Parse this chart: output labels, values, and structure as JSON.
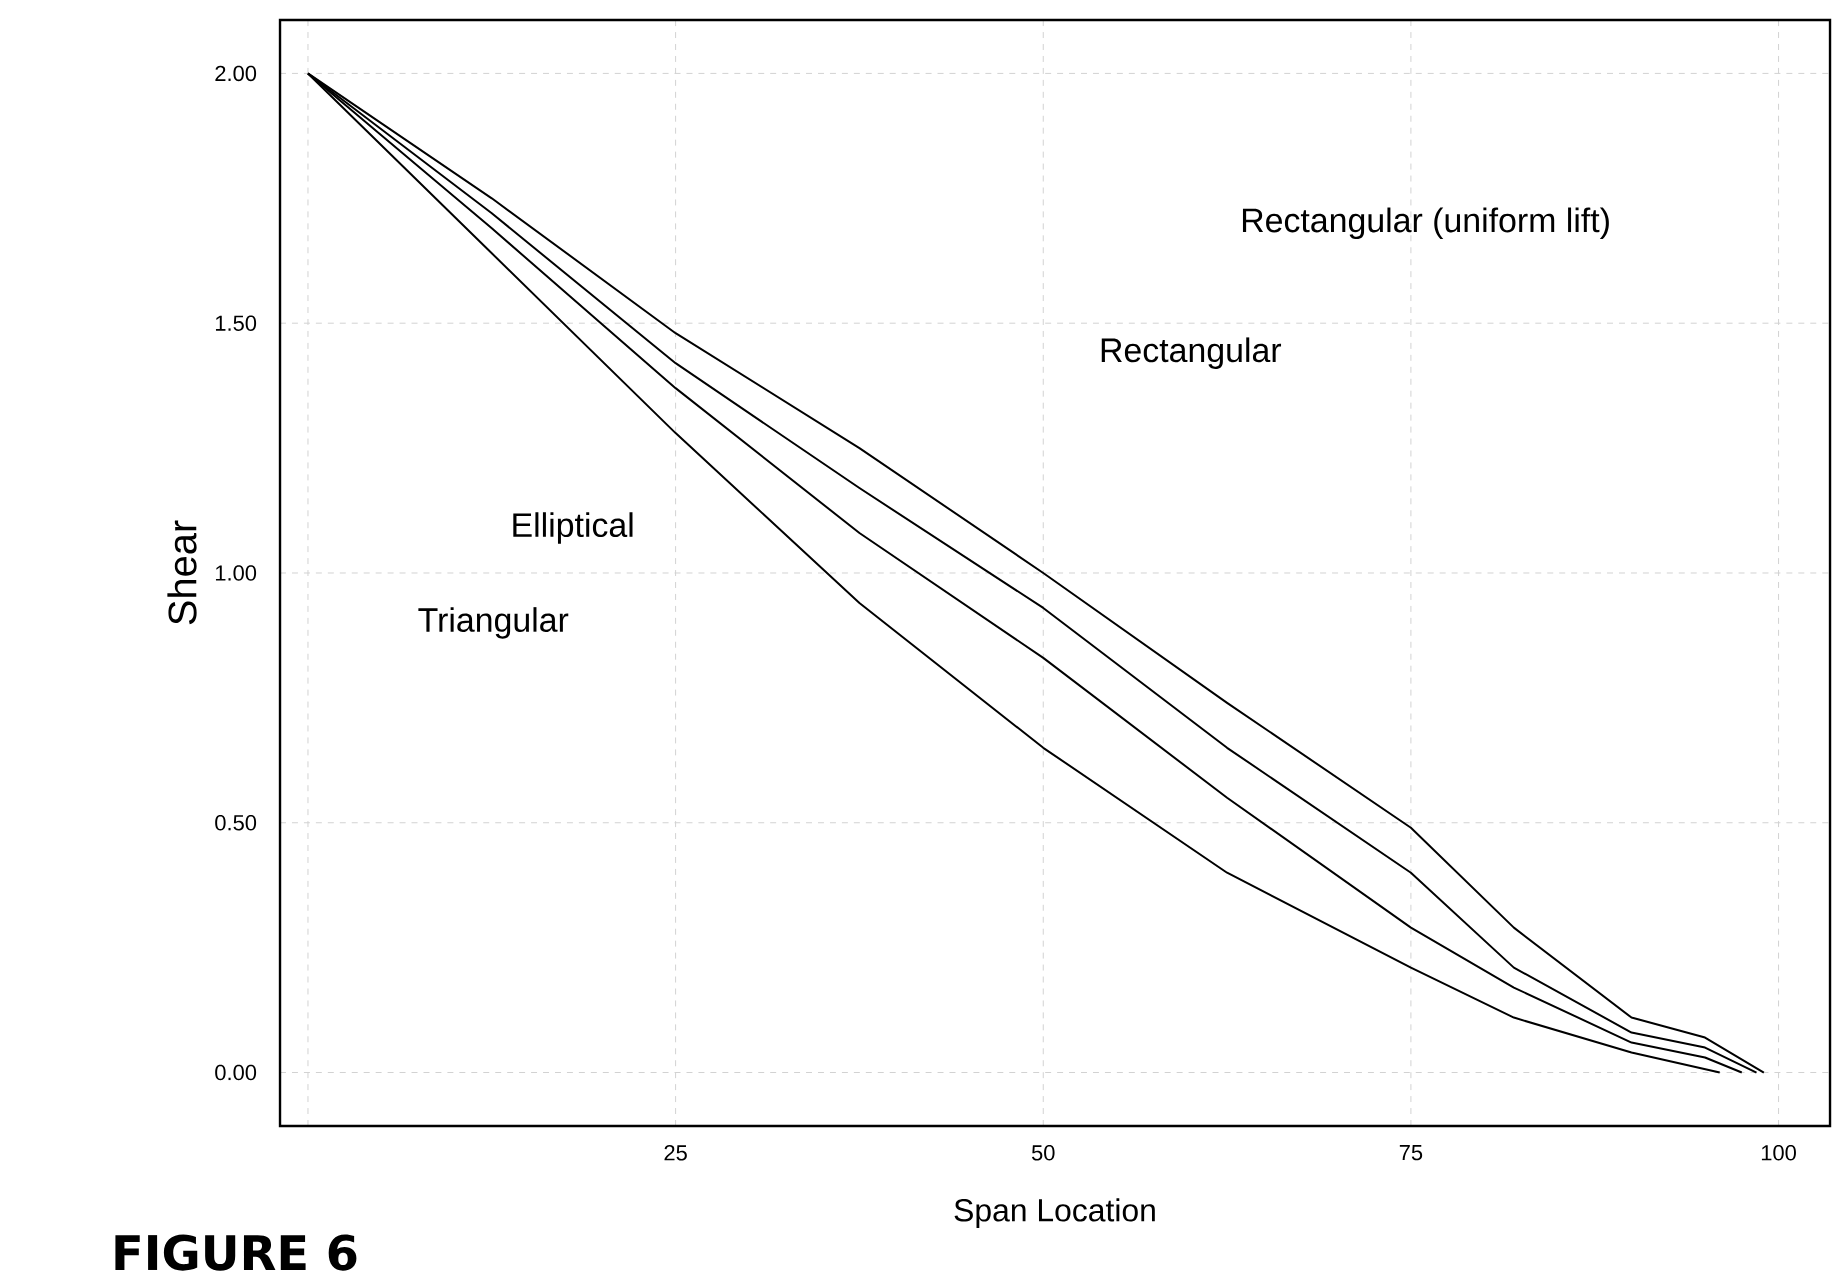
{
  "chart_data": {
    "type": "line",
    "xlabel": "Span Location",
    "ylabel": "Shear",
    "annotations": [
      "**FIGURE 6**",
      "Rectangular (uniform lift)",
      "Rectangular",
      "Elliptical",
      "Triangular"
    ],
    "x": [
      0,
      12.5,
      25,
      37.5,
      50,
      62.5,
      75,
      82,
      90,
      95,
      99
    ],
    "series": [
      {
        "color": "#000000",
        "values": [
          2.0,
          1.75,
          1.48,
          1.25,
          1.0,
          0.74,
          0.49,
          0.29,
          0.11,
          0.07,
          0.0
        ]
      },
      {
        "color": "#000000",
        "x": [
          0,
          12.5,
          25,
          37.5,
          50,
          62.5,
          75,
          82,
          90,
          95,
          98.5
        ],
        "values": [
          2.0,
          1.72,
          1.42,
          1.17,
          0.93,
          0.65,
          0.4,
          0.21,
          0.08,
          0.05,
          0.0
        ]
      },
      {
        "color": "#000000",
        "x": [
          0,
          12.5,
          25,
          37.5,
          50,
          62.5,
          75,
          82,
          90,
          95,
          97.5
        ],
        "values": [
          2.0,
          1.69,
          1.37,
          1.08,
          0.83,
          0.55,
          0.29,
          0.17,
          0.06,
          0.03,
          0.0
        ]
      },
      {
        "color": "#000000",
        "x": [
          0,
          12.5,
          25,
          37.5,
          50,
          62.5,
          75,
          82,
          90,
          93,
          96
        ],
        "values": [
          2.0,
          1.64,
          1.28,
          0.94,
          0.65,
          0.4,
          0.21,
          0.11,
          0.04,
          0.02,
          0.0
        ]
      }
    ],
    "xlim": [
      -1.9,
      103.5
    ],
    "ylim": [
      -0.107,
      2.107
    ],
    "xticks": [
      {
        "value": 0,
        "label": null
      },
      25,
      50,
      75,
      100
    ],
    "yticks": [
      {
        "value": 0,
        "label": "0.00"
      },
      {
        "value": 0.5,
        "label": "0.50"
      },
      {
        "value": 1,
        "label": "1.00"
      },
      {
        "value": 1.5,
        "label": "1.50"
      },
      {
        "value": 2,
        "label": "2.00"
      }
    ],
    "grid": true,
    "marker": "none",
    "line_style": "solid"
  }
}
